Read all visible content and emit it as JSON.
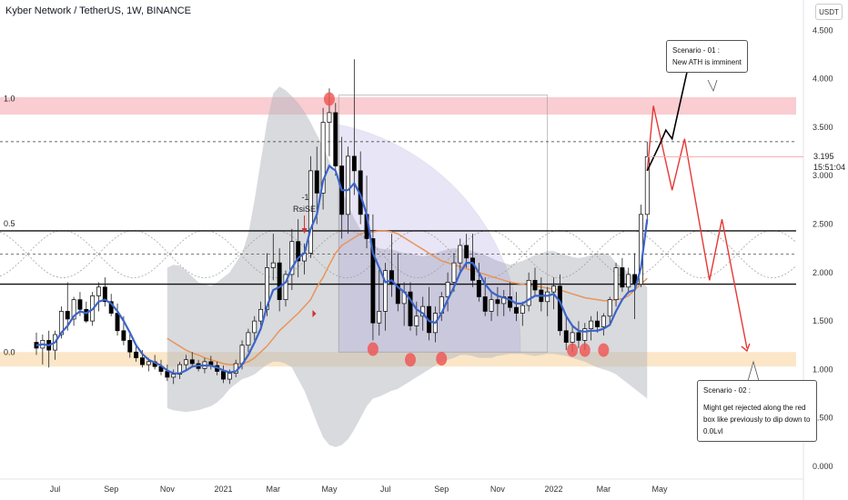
{
  "header": {
    "title": "Kyber Network / TetherUS, 1W, BINANCE",
    "unit": "USDT"
  },
  "chart_data": {
    "type": "candlestick",
    "title": "Kyber Network / TetherUS, 1W, BINANCE",
    "y_ticks": [
      "4.500",
      "4.000",
      "3.500",
      "3.000",
      "2.500",
      "2.000",
      "1.500",
      "1.000",
      "0.500",
      "0.000"
    ],
    "y_tick_values": [
      4.5,
      4.0,
      3.5,
      3.0,
      2.5,
      2.0,
      1.5,
      1.0,
      0.5,
      0.0
    ],
    "ylim": [
      -0.05,
      4.7
    ],
    "x_ticks": [
      "Jul",
      "Sep",
      "Nov",
      "2021",
      "Mar",
      "May",
      "Jul",
      "Sep",
      "Nov",
      "2022",
      "Mar",
      "May"
    ],
    "x_tick_weeks": [
      3,
      12,
      21,
      30,
      38,
      47,
      56,
      65,
      74,
      83,
      91,
      100
    ],
    "current_price": "3.195",
    "countdown": "15:51:04",
    "fib_levels": [
      {
        "label": "1.0",
        "value": 3.72
      },
      {
        "label": "0.5",
        "value": 2.43
      },
      {
        "label": "0.0",
        "value": 1.1
      }
    ],
    "horizontal_lines": [
      {
        "style": "solid",
        "value": 2.43
      },
      {
        "style": "solid",
        "value": 1.88
      },
      {
        "style": "dashed",
        "value": 3.35
      },
      {
        "style": "dashed",
        "value": 2.19
      }
    ],
    "zones": [
      {
        "color": "#f8c8cc",
        "low": 3.63,
        "high": 3.81
      },
      {
        "color": "#fbe3c2",
        "low": 1.03,
        "high": 1.18
      }
    ],
    "annotation_rsi": {
      "line1": "-1",
      "line2": "RsiSE"
    },
    "scenario_1": {
      "title": "Scenario - 01 :",
      "text": "New ATH is imminent"
    },
    "scenario_2": {
      "title": "Scenario - 02 :",
      "text": "Might get rejected along the red box like previously to dip down to 0.0Lvl"
    },
    "candles": [
      [
        0,
        1.28,
        1.38,
        1.15,
        1.22
      ],
      [
        1,
        1.22,
        1.36,
        1.05,
        1.3
      ],
      [
        2,
        1.3,
        1.4,
        1.02,
        1.2
      ],
      [
        3,
        1.2,
        1.4,
        1.1,
        1.36
      ],
      [
        4,
        1.36,
        1.65,
        1.32,
        1.6
      ],
      [
        5,
        1.6,
        1.9,
        1.4,
        1.52
      ],
      [
        6,
        1.52,
        1.75,
        1.45,
        1.72
      ],
      [
        7,
        1.72,
        1.8,
        1.55,
        1.62
      ],
      [
        8,
        1.62,
        1.7,
        1.48,
        1.5
      ],
      [
        9,
        1.5,
        1.8,
        1.45,
        1.76
      ],
      [
        10,
        1.76,
        1.9,
        1.6,
        1.85
      ],
      [
        11,
        1.85,
        1.95,
        1.65,
        1.7
      ],
      [
        12,
        1.7,
        1.78,
        1.55,
        1.58
      ],
      [
        13,
        1.58,
        1.68,
        1.35,
        1.4
      ],
      [
        14,
        1.4,
        1.55,
        1.25,
        1.3
      ],
      [
        15,
        1.3,
        1.4,
        1.12,
        1.18
      ],
      [
        16,
        1.18,
        1.25,
        1.08,
        1.12
      ],
      [
        17,
        1.12,
        1.2,
        1.02,
        1.05
      ],
      [
        18,
        1.05,
        1.12,
        0.98,
        1.08
      ],
      [
        19,
        1.08,
        1.15,
        1.0,
        1.03
      ],
      [
        20,
        1.03,
        1.1,
        0.94,
        0.98
      ],
      [
        21,
        0.98,
        1.05,
        0.88,
        0.92
      ],
      [
        22,
        0.92,
        1.0,
        0.85,
        0.95
      ],
      [
        23,
        0.95,
        1.08,
        0.9,
        1.05
      ],
      [
        24,
        1.05,
        1.15,
        0.98,
        1.1
      ],
      [
        25,
        1.1,
        1.18,
        1.02,
        1.06
      ],
      [
        26,
        1.06,
        1.1,
        0.98,
        1.01
      ],
      [
        27,
        1.01,
        1.12,
        0.96,
        1.08
      ],
      [
        28,
        1.08,
        1.14,
        1.0,
        1.04
      ],
      [
        29,
        1.04,
        1.08,
        0.94,
        0.98
      ],
      [
        30,
        0.98,
        1.04,
        0.86,
        0.9
      ],
      [
        31,
        0.9,
        1.0,
        0.85,
        0.96
      ],
      [
        32,
        0.96,
        1.1,
        0.92,
        1.06
      ],
      [
        33,
        1.06,
        1.3,
        1.0,
        1.25
      ],
      [
        34,
        1.25,
        1.42,
        1.18,
        1.38
      ],
      [
        35,
        1.38,
        1.55,
        1.3,
        1.5
      ],
      [
        36,
        1.5,
        1.7,
        1.45,
        1.62
      ],
      [
        37,
        1.62,
        2.2,
        1.55,
        2.05
      ],
      [
        38,
        2.05,
        2.4,
        1.92,
        2.1
      ],
      [
        39,
        2.1,
        2.25,
        1.6,
        1.72
      ],
      [
        40,
        1.72,
        2.02,
        1.65,
        1.98
      ],
      [
        41,
        1.98,
        2.45,
        1.82,
        2.32
      ],
      [
        42,
        2.32,
        2.55,
        1.95,
        2.12
      ],
      [
        43,
        2.12,
        2.3,
        1.98,
        2.2
      ],
      [
        44,
        2.2,
        3.2,
        2.15,
        3.05
      ],
      [
        45,
        3.05,
        3.3,
        2.5,
        2.82
      ],
      [
        46,
        2.82,
        3.7,
        2.65,
        3.55
      ],
      [
        47,
        3.55,
        3.9,
        3.2,
        3.65
      ],
      [
        48,
        3.65,
        3.75,
        3.0,
        3.1
      ],
      [
        49,
        3.1,
        3.4,
        2.35,
        2.6
      ],
      [
        50,
        2.6,
        3.3,
        2.4,
        3.2
      ],
      [
        51,
        3.2,
        4.2,
        2.8,
        3.05
      ],
      [
        52,
        3.05,
        3.25,
        2.5,
        2.6
      ],
      [
        53,
        2.6,
        3.0,
        2.25,
        2.35
      ],
      [
        54,
        2.35,
        2.6,
        1.3,
        1.48
      ],
      [
        55,
        1.48,
        2.05,
        1.35,
        1.6
      ],
      [
        56,
        1.6,
        2.1,
        1.4,
        2.02
      ],
      [
        57,
        2.02,
        2.4,
        1.75,
        1.88
      ],
      [
        58,
        1.88,
        2.2,
        1.6,
        1.68
      ],
      [
        59,
        1.68,
        1.9,
        1.45,
        1.8
      ],
      [
        60,
        1.8,
        1.9,
        1.4,
        1.45
      ],
      [
        61,
        1.45,
        1.7,
        1.35,
        1.55
      ],
      [
        62,
        1.55,
        1.75,
        1.4,
        1.65
      ],
      [
        63,
        1.65,
        1.85,
        1.3,
        1.38
      ],
      [
        64,
        1.38,
        1.65,
        1.28,
        1.58
      ],
      [
        65,
        1.58,
        1.8,
        1.5,
        1.75
      ],
      [
        66,
        1.75,
        2.0,
        1.6,
        1.9
      ],
      [
        67,
        1.9,
        2.2,
        1.8,
        2.1
      ],
      [
        68,
        2.1,
        2.35,
        2.0,
        2.28
      ],
      [
        69,
        2.28,
        2.4,
        2.05,
        2.15
      ],
      [
        70,
        2.15,
        2.4,
        1.85,
        1.92
      ],
      [
        71,
        1.92,
        2.1,
        1.7,
        1.75
      ],
      [
        72,
        1.75,
        1.95,
        1.55,
        1.6
      ],
      [
        73,
        1.6,
        1.8,
        1.5,
        1.72
      ],
      [
        74,
        1.72,
        1.85,
        1.55,
        1.68
      ],
      [
        75,
        1.68,
        1.82,
        1.55,
        1.75
      ],
      [
        76,
        1.75,
        1.9,
        1.6,
        1.64
      ],
      [
        77,
        1.64,
        1.8,
        1.5,
        1.58
      ],
      [
        78,
        1.58,
        1.7,
        1.45,
        1.66
      ],
      [
        79,
        1.66,
        2.0,
        1.6,
        1.92
      ],
      [
        80,
        1.92,
        2.05,
        1.75,
        1.82
      ],
      [
        81,
        1.82,
        1.95,
        1.6,
        1.7
      ],
      [
        82,
        1.7,
        1.85,
        1.55,
        1.8
      ],
      [
        83,
        1.8,
        1.95,
        1.62,
        1.86
      ],
      [
        84,
        1.86,
        1.98,
        1.35,
        1.4
      ],
      [
        85,
        1.4,
        1.55,
        1.2,
        1.28
      ],
      [
        86,
        1.28,
        1.45,
        1.18,
        1.38
      ],
      [
        87,
        1.38,
        1.5,
        1.22,
        1.3
      ],
      [
        88,
        1.3,
        1.48,
        1.2,
        1.42
      ],
      [
        89,
        1.42,
        1.55,
        1.3,
        1.5
      ],
      [
        90,
        1.5,
        1.6,
        1.38,
        1.44
      ],
      [
        91,
        1.44,
        1.58,
        1.35,
        1.55
      ],
      [
        92,
        1.55,
        1.75,
        1.45,
        1.72
      ],
      [
        93,
        1.72,
        2.1,
        1.65,
        2.05
      ],
      [
        94,
        2.05,
        2.15,
        1.8,
        1.85
      ],
      [
        95,
        1.85,
        2.05,
        1.78,
        1.98
      ],
      [
        96,
        1.98,
        2.2,
        1.52,
        1.88
      ],
      [
        97,
        1.88,
        2.7,
        1.85,
        2.6
      ],
      [
        98,
        2.6,
        3.35,
        2.5,
        3.195
      ]
    ],
    "ema_blue": [
      1.25,
      1.26,
      1.25,
      1.28,
      1.38,
      1.45,
      1.55,
      1.6,
      1.58,
      1.62,
      1.7,
      1.72,
      1.68,
      1.6,
      1.5,
      1.38,
      1.25,
      1.16,
      1.1,
      1.07,
      1.04,
      0.99,
      0.96,
      0.96,
      0.99,
      1.03,
      1.04,
      1.04,
      1.04,
      1.02,
      0.99,
      0.97,
      0.98,
      1.05,
      1.15,
      1.28,
      1.42,
      1.65,
      1.82,
      1.85,
      1.9,
      2.05,
      2.15,
      2.2,
      2.45,
      2.6,
      2.95,
      3.1,
      3.05,
      2.85,
      2.85,
      2.92,
      2.8,
      2.6,
      2.2,
      2.05,
      1.9,
      1.92,
      1.85,
      1.8,
      1.72,
      1.62,
      1.58,
      1.5,
      1.48,
      1.58,
      1.72,
      1.85,
      2.0,
      2.1,
      2.1,
      2.0,
      1.88,
      1.8,
      1.76,
      1.74,
      1.72,
      1.68,
      1.68,
      1.72,
      1.76,
      1.76,
      1.76,
      1.78,
      1.7,
      1.55,
      1.45,
      1.4,
      1.39,
      1.4,
      1.4,
      1.42,
      1.46,
      1.6,
      1.72,
      1.8,
      1.82,
      2.05,
      2.55
    ],
    "ema_orange": {
      "start": 21,
      "values": [
        1.32,
        1.28,
        1.24,
        1.2,
        1.17,
        1.15,
        1.12,
        1.1,
        1.08,
        1.06,
        1.05,
        1.05,
        1.06,
        1.08,
        1.12,
        1.18,
        1.24,
        1.32,
        1.4,
        1.46,
        1.52,
        1.58,
        1.65,
        1.72,
        1.85,
        1.95,
        2.08,
        2.2,
        2.28,
        2.32,
        2.36,
        2.4,
        2.42,
        2.42,
        2.43,
        2.43,
        2.42,
        2.4,
        2.36,
        2.32,
        2.28,
        2.24,
        2.2,
        2.16,
        2.12,
        2.1,
        2.08,
        2.06,
        2.04,
        2.02,
        2.0,
        1.98,
        1.96,
        1.94,
        1.92,
        1.9,
        1.89,
        1.88,
        1.87,
        1.86,
        1.85,
        1.84,
        1.83,
        1.82,
        1.8,
        1.78,
        1.76,
        1.74,
        1.73,
        1.72,
        1.71,
        1.71,
        1.72,
        1.73,
        1.76,
        1.82,
        1.88,
        1.94
      ]
    },
    "cloud": {
      "start": 21,
      "upper": [
        2.05,
        2.08,
        2.07,
        2.02,
        1.96,
        1.9,
        1.88,
        1.86,
        1.9,
        1.95,
        2.0,
        2.1,
        2.2,
        2.4,
        2.75,
        3.15,
        3.55,
        3.85,
        3.92,
        3.88,
        3.82,
        3.75,
        3.66,
        3.55,
        3.42,
        3.3,
        3.15,
        3.0,
        2.85,
        2.7,
        2.56,
        2.44,
        2.35,
        2.28,
        2.25,
        2.24,
        2.24,
        2.22,
        2.2,
        2.2,
        2.18,
        2.17,
        2.18,
        2.2,
        2.22,
        2.24,
        2.25,
        2.25,
        2.24,
        2.22,
        2.2,
        2.18,
        2.15,
        2.12,
        2.1,
        2.08,
        2.1,
        2.12,
        2.15,
        2.18,
        2.2,
        2.22,
        2.22,
        2.2,
        2.18,
        2.16,
        2.15,
        2.16,
        2.18,
        2.2,
        2.2,
        2.18,
        2.1,
        2.05,
        2.0,
        1.95,
        1.9,
        1.85
      ],
      "lower": [
        0.6,
        0.58,
        0.57,
        0.56,
        0.57,
        0.58,
        0.6,
        0.62,
        0.66,
        0.72,
        0.8,
        0.85,
        0.9,
        0.92,
        0.95,
        1.0,
        1.05,
        1.08,
        1.08,
        1.06,
        1.02,
        0.9,
        0.78,
        0.62,
        0.45,
        0.3,
        0.22,
        0.2,
        0.22,
        0.28,
        0.38,
        0.5,
        0.62,
        0.7,
        0.72,
        0.75,
        0.78,
        0.8,
        0.84,
        0.88,
        0.92,
        0.96,
        1.0,
        1.04,
        1.08,
        1.1,
        1.12,
        1.15,
        1.15,
        1.14,
        1.12,
        1.12,
        1.12,
        1.14,
        1.15,
        1.16,
        1.16,
        1.16,
        1.15,
        1.14,
        1.15,
        1.16,
        1.16,
        1.15,
        1.14,
        1.12,
        1.1,
        1.08,
        1.05,
        1.02,
        1.0,
        0.98,
        0.95,
        0.9,
        0.85,
        0.8,
        0.75,
        0.7
      ]
    },
    "red_markers": [
      [
        47,
        3.79
      ],
      [
        54,
        1.21
      ],
      [
        60,
        1.1
      ],
      [
        65,
        1.11
      ],
      [
        86,
        1.2
      ],
      [
        88,
        1.2
      ],
      [
        91,
        1.2
      ]
    ],
    "projection_red": [
      [
        98,
        3.05
      ],
      [
        99,
        3.72
      ],
      [
        102,
        2.85
      ],
      [
        104,
        3.38
      ],
      [
        108,
        1.92
      ],
      [
        110,
        2.55
      ],
      [
        114,
        1.22
      ]
    ],
    "projection_black": [
      [
        98,
        3.05
      ],
      [
        100,
        3.32
      ],
      [
        101,
        3.47
      ],
      [
        102,
        3.38
      ],
      [
        105,
        4.25
      ]
    ],
    "rsi_arrow_week": 43
  }
}
